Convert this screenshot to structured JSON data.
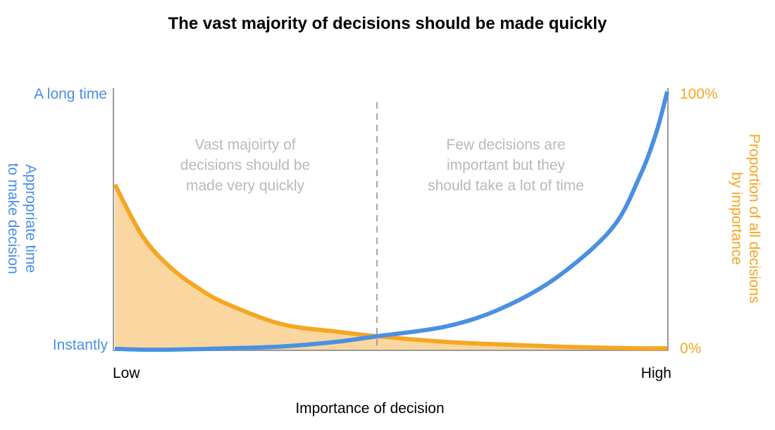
{
  "chart_data": {
    "type": "line",
    "title": "The vast majority of decisions should be made quickly",
    "xlabel": "Importance of decision",
    "x_ticks": {
      "low": "Low",
      "high": "High"
    },
    "xlim": [
      0,
      1
    ],
    "y_left": {
      "label_line1": "Appropriate time",
      "label_line2": "to make decision",
      "top": "A long time",
      "bottom": "Instantly",
      "color": "#4a90e2"
    },
    "y_right": {
      "label_line1": "Proportion of all decisions",
      "label_line2": "by importance",
      "top": "100%",
      "bottom": "0%",
      "color": "#f5a623"
    },
    "ylim": [
      0,
      1
    ],
    "divider_x": 0.475,
    "annotations": {
      "left": [
        "Vast majoirty of",
        "decisions should be",
        "made very quickly"
      ],
      "right": [
        "Few decisions are",
        "important but they",
        "should take a lot of time"
      ]
    },
    "x": [
      0,
      0.05,
      0.1,
      0.15,
      0.2,
      0.3,
      0.4,
      0.475,
      0.6,
      0.7,
      0.8,
      0.9,
      0.95,
      0.98,
      1.0
    ],
    "series": [
      {
        "name": "Proportion of all decisions by importance",
        "axis": "right",
        "color": "#f5a623",
        "fill": "#fad7a0",
        "values": [
          0.64,
          0.44,
          0.32,
          0.24,
          0.18,
          0.1,
          0.07,
          0.052,
          0.03,
          0.02,
          0.012,
          0.007,
          0.005,
          0.005,
          0.005
        ]
      },
      {
        "name": "Appropriate time to make decision",
        "axis": "left",
        "color": "#4a90e2",
        "values": [
          0.003,
          0.0,
          0.0,
          0.002,
          0.005,
          0.012,
          0.03,
          0.052,
          0.09,
          0.16,
          0.28,
          0.47,
          0.67,
          0.84,
          1.0
        ]
      }
    ]
  }
}
